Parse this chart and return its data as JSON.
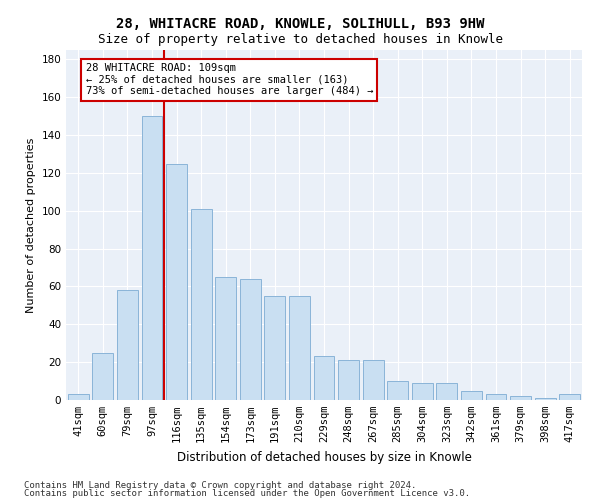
{
  "title1": "28, WHITACRE ROAD, KNOWLE, SOLIHULL, B93 9HW",
  "title2": "Size of property relative to detached houses in Knowle",
  "xlabel": "Distribution of detached houses by size in Knowle",
  "ylabel": "Number of detached properties",
  "categories": [
    "41sqm",
    "60sqm",
    "79sqm",
    "97sqm",
    "116sqm",
    "135sqm",
    "154sqm",
    "173sqm",
    "191sqm",
    "210sqm",
    "229sqm",
    "248sqm",
    "267sqm",
    "285sqm",
    "304sqm",
    "323sqm",
    "342sqm",
    "361sqm",
    "379sqm",
    "398sqm",
    "417sqm"
  ],
  "values": [
    3,
    25,
    58,
    150,
    125,
    101,
    65,
    64,
    55,
    55,
    23,
    21,
    21,
    10,
    9,
    9,
    5,
    3,
    2,
    1,
    3
  ],
  "bar_color": "#c9dff2",
  "bar_edge_color": "#8ab4d8",
  "bar_width": 0.85,
  "vline_x": 3.5,
  "vline_color": "#cc0000",
  "annotation_title": "28 WHITACRE ROAD: 109sqm",
  "annotation_line1": "← 25% of detached houses are smaller (163)",
  "annotation_line2": "73% of semi-detached houses are larger (484) →",
  "annotation_box_color": "#ffffff",
  "annotation_box_edge": "#cc0000",
  "ylim": [
    0,
    185
  ],
  "yticks": [
    0,
    20,
    40,
    60,
    80,
    100,
    120,
    140,
    160,
    180
  ],
  "background_color": "#eaf0f8",
  "grid_color": "#ffffff",
  "footer1": "Contains HM Land Registry data © Crown copyright and database right 2024.",
  "footer2": "Contains public sector information licensed under the Open Government Licence v3.0.",
  "title1_fontsize": 10,
  "title2_fontsize": 9,
  "xlabel_fontsize": 8.5,
  "ylabel_fontsize": 8,
  "tick_fontsize": 7.5,
  "annotation_fontsize": 7.5,
  "footer_fontsize": 6.5
}
